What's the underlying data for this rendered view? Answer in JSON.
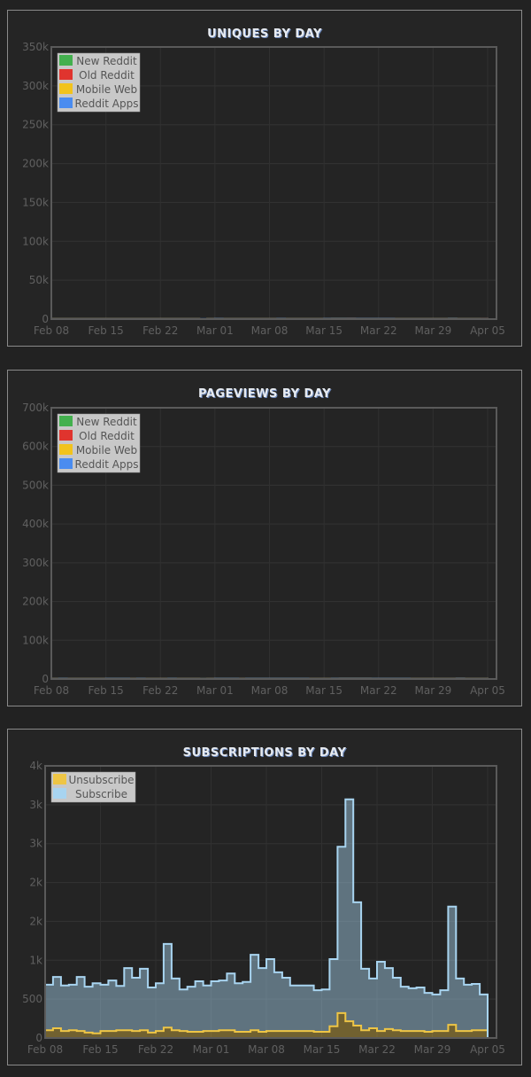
{
  "colors": {
    "background": "#222222",
    "panel": "#252525",
    "new_reddit": "#43b04e",
    "old_reddit": "#e0342e",
    "mobile_web": "#f2c31c",
    "reddit_apps": "#4a8cf0",
    "unsubscribe": "#eec545",
    "subscribe": "#a8d4f0"
  },
  "chart_data": [
    {
      "type": "area",
      "stacked": true,
      "step": true,
      "title": "UNIQUES BY DAY",
      "ylim": [
        0,
        350000
      ],
      "yticks": [
        0,
        50000,
        100000,
        150000,
        200000,
        250000,
        300000,
        350000
      ],
      "ytick_labels": [
        "0",
        "50k",
        "100k",
        "150k",
        "200k",
        "250k",
        "300k",
        "350k"
      ],
      "xtick_labels": [
        "Feb 08",
        "Feb 15",
        "Feb 22",
        "Mar 01",
        "Mar 08",
        "Mar 15",
        "Mar 22",
        "Mar 29",
        "Apr 05"
      ],
      "xtick_days": [
        0,
        7,
        14,
        21,
        28,
        35,
        42,
        49,
        56
      ],
      "days": 57,
      "grid": true,
      "legend": "top-left",
      "series": [
        {
          "name": "New Reddit",
          "color_key": "new_reddit",
          "values": [
            91,
            96,
            89,
            89,
            88,
            84,
            83,
            91,
            95,
            91,
            88,
            87,
            83,
            82,
            89,
            96,
            91,
            75,
            78,
            24,
            89,
            104,
            104,
            99,
            95,
            94,
            91,
            94,
            97,
            104,
            91,
            90,
            93,
            93,
            93,
            105,
            111,
            114,
            105,
            94,
            95,
            94,
            96,
            101,
            95,
            88,
            86,
            83,
            81,
            83,
            84,
            88,
            68,
            63,
            59,
            57,
            0
          ]
        },
        {
          "name": "Old Reddit",
          "color_key": "old_reddit",
          "values": [
            17,
            19,
            17,
            18,
            18,
            20,
            18,
            20,
            20,
            21,
            19,
            20,
            18,
            19,
            18,
            21,
            21,
            21,
            20,
            15,
            22,
            21,
            17,
            19,
            17,
            20,
            20,
            21,
            19,
            21,
            20,
            18,
            19,
            18,
            18,
            16,
            20,
            44,
            85,
            38,
            25,
            22,
            24,
            25,
            24,
            18,
            17,
            20,
            18,
            16,
            17,
            73,
            18,
            15,
            14,
            15,
            0
          ]
        },
        {
          "name": "Mobile Web",
          "color_key": "mobile_web",
          "values": [
            31,
            34,
            33,
            31,
            30,
            27,
            22,
            28,
            32,
            31,
            28,
            26,
            26,
            24,
            28,
            33,
            31,
            27,
            24,
            13,
            27,
            33,
            36,
            38,
            31,
            30,
            29,
            31,
            32,
            35,
            29,
            29,
            32,
            32,
            34,
            37,
            46,
            43,
            47,
            38,
            33,
            36,
            36,
            37,
            27,
            18,
            15,
            21,
            23,
            25,
            30,
            45,
            23,
            21,
            18,
            17,
            0
          ]
        },
        {
          "name": "Reddit Apps",
          "color_key": "reddit_apps",
          "values": [
            13,
            15,
            13,
            11,
            16,
            15,
            13,
            18,
            15,
            14,
            18,
            16,
            12,
            15,
            11,
            18,
            10,
            13,
            16,
            8,
            18,
            20,
            12,
            7,
            10,
            14,
            16,
            20,
            14,
            14,
            16,
            14,
            12,
            11,
            11,
            14,
            16,
            40,
            57,
            33,
            19,
            21,
            24,
            20,
            19,
            14,
            10,
            14,
            13,
            16,
            16,
            55,
            20,
            15,
            15,
            14,
            0
          ]
        }
      ]
    },
    {
      "type": "area",
      "stacked": true,
      "step": true,
      "title": "PAGEVIEWS BY DAY",
      "ylim": [
        0,
        700000
      ],
      "yticks": [
        0,
        100000,
        200000,
        300000,
        400000,
        500000,
        600000,
        700000
      ],
      "ytick_labels": [
        "0",
        "100k",
        "200k",
        "300k",
        "400k",
        "500k",
        "600k",
        "700k"
      ],
      "xtick_labels": [
        "Feb 08",
        "Feb 15",
        "Feb 22",
        "Mar 01",
        "Mar 08",
        "Mar 15",
        "Mar 22",
        "Mar 29",
        "Apr 05"
      ],
      "xtick_days": [
        0,
        7,
        14,
        21,
        28,
        35,
        42,
        49,
        56
      ],
      "days": 57,
      "grid": true,
      "legend": "top-left",
      "series": [
        {
          "name": "New Reddit",
          "color_key": "new_reddit",
          "values": [
            165,
            176,
            158,
            158,
            160,
            153,
            153,
            174,
            181,
            167,
            162,
            162,
            156,
            149,
            162,
            178,
            162,
            135,
            140,
            41,
            162,
            181,
            178,
            174,
            167,
            167,
            162,
            172,
            176,
            174,
            178,
            190,
            162,
            160,
            167,
            160,
            181,
            201,
            213,
            201,
            176,
            178,
            174,
            183,
            190,
            176,
            167,
            162,
            158,
            156,
            158,
            158,
            158,
            135,
            121,
            117,
            0
          ]
        },
        {
          "name": "Old Reddit",
          "color_key": "old_reddit",
          "values": [
            57,
            60,
            57,
            59,
            60,
            62,
            57,
            64,
            62,
            62,
            65,
            69,
            64,
            55,
            62,
            60,
            55,
            62,
            57,
            53,
            60,
            62,
            58,
            57,
            57,
            62,
            67,
            66,
            60,
            69,
            67,
            69,
            65,
            57,
            57,
            57,
            59,
            80,
            121,
            92,
            92,
            71,
            71,
            71,
            78,
            67,
            60,
            58,
            59,
            57,
            57,
            64,
            135,
            53,
            53,
            48,
            0
          ]
        },
        {
          "name": "Mobile Web",
          "color_key": "mobile_web",
          "values": [
            50,
            59,
            50,
            48,
            48,
            46,
            39,
            57,
            57,
            57,
            45,
            34,
            29,
            45,
            46,
            57,
            53,
            41,
            46,
            27,
            50,
            57,
            59,
            57,
            48,
            48,
            55,
            66,
            64,
            50,
            50,
            64,
            54,
            53,
            53,
            55,
            64,
            67,
            129,
            85,
            85,
            66,
            60,
            59,
            64,
            66,
            52,
            39,
            42,
            41,
            41,
            46,
            71,
            39,
            34,
            32,
            0
          ]
        },
        {
          "name": "Reddit Apps",
          "color_key": "reddit_apps",
          "values": [
            55,
            64,
            62,
            60,
            59,
            62,
            55,
            64,
            62,
            64,
            64,
            80,
            69,
            55,
            53,
            73,
            66,
            66,
            61,
            30,
            67,
            68,
            64,
            64,
            58,
            75,
            71,
            74,
            64,
            82,
            69,
            66,
            67,
            60,
            57,
            55,
            55,
            78,
            183,
            210,
            119,
            78,
            99,
            94,
            94,
            71,
            59,
            60,
            61,
            50,
            55,
            55,
            137,
            73,
            64,
            57,
            0
          ]
        }
      ]
    },
    {
      "type": "area",
      "stacked": true,
      "step": true,
      "title": "SUBSCRIPTIONS BY DAY",
      "ylim": [
        0,
        3500
      ],
      "yticks": [
        0,
        500,
        1000,
        1500,
        2000,
        2500,
        3000,
        3500
      ],
      "ytick_labels": [
        "0",
        "500",
        "1k",
        "2k",
        "2k",
        "3k",
        "3k",
        "4k"
      ],
      "xtick_labels": [
        "Feb 08",
        "Feb 15",
        "Feb 22",
        "Mar 01",
        "Mar 08",
        "Mar 15",
        "Mar 22",
        "Mar 29",
        "Apr 05"
      ],
      "xtick_days": [
        0,
        7,
        14,
        21,
        28,
        35,
        42,
        49,
        56
      ],
      "days": 57,
      "grid": true,
      "legend": "top-left",
      "series": [
        {
          "name": "Unsubscribe",
          "color_key": "unsubscribe",
          "values": [
            100,
            125,
            90,
            100,
            90,
            70,
            60,
            90,
            90,
            100,
            100,
            90,
            100,
            70,
            90,
            135,
            100,
            90,
            80,
            80,
            90,
            90,
            100,
            100,
            80,
            80,
            100,
            80,
            90,
            90,
            90,
            90,
            90,
            90,
            80,
            80,
            150,
            320,
            215,
            160,
            100,
            125,
            90,
            115,
            100,
            90,
            90,
            90,
            80,
            90,
            90,
            170,
            90,
            90,
            100,
            100,
            0
          ]
        },
        {
          "name": "Subscribe",
          "color_key": "subscribe",
          "values": [
            585,
            660,
            585,
            585,
            695,
            590,
            645,
            595,
            650,
            570,
            800,
            685,
            790,
            580,
            615,
            1075,
            665,
            535,
            580,
            650,
            585,
            640,
            640,
            730,
            625,
            640,
            970,
            820,
            925,
            755,
            685,
            585,
            585,
            585,
            535,
            545,
            865,
            2140,
            2855,
            1585,
            790,
            640,
            890,
            785,
            675,
            570,
            550,
            560,
            500,
            470,
            525,
            1520,
            675,
            595,
            595,
            460,
            0
          ]
        }
      ]
    }
  ],
  "legends": [
    [
      "New Reddit",
      "Old Reddit",
      "Mobile Web",
      "Reddit Apps"
    ],
    [
      "New Reddit",
      "Old Reddit",
      "Mobile Web",
      "Reddit Apps"
    ],
    [
      "Unsubscribe",
      "Subscribe"
    ]
  ]
}
